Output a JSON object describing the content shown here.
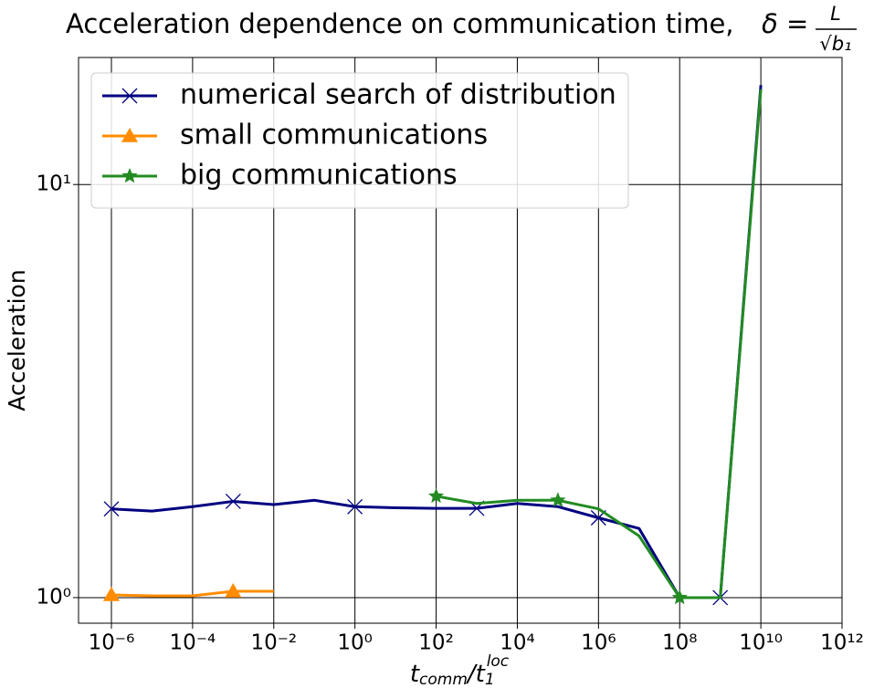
{
  "chart_data": {
    "type": "line",
    "title": "Acceleration dependence on communication time,",
    "title_math": {
      "lhs": "δ =",
      "numerator": "L",
      "denominator": "√b₁"
    },
    "xlabel": [
      "t",
      "comm",
      "/t",
      "1",
      "loc"
    ],
    "ylabel": "Acceleration",
    "xscale": "log",
    "yscale": "log",
    "grid": true,
    "legend": "upper left",
    "xlim": [
      1.55e-07,
      1000000000000.0
    ],
    "ylim": [
      0.867,
      20.3
    ],
    "xticks": [
      {
        "value": 1e-06,
        "label": "10⁻⁶"
      },
      {
        "value": 0.0001,
        "label": "10⁻⁴"
      },
      {
        "value": 0.01,
        "label": "10⁻²"
      },
      {
        "value": 1,
        "label": "10⁰"
      },
      {
        "value": 100,
        "label": "10²"
      },
      {
        "value": 10000,
        "label": "10⁴"
      },
      {
        "value": 1000000,
        "label": "10⁶"
      },
      {
        "value": 100000000,
        "label": "10⁸"
      },
      {
        "value": 10000000000,
        "label": "10¹⁰"
      },
      {
        "value": 1000000000000,
        "label": "10¹²"
      }
    ],
    "yticks": [
      {
        "value": 1,
        "label": "10⁰"
      },
      {
        "value": 10,
        "label": "10¹"
      }
    ],
    "series": [
      {
        "name": "numerical search of distribution",
        "color": "#000080",
        "marker": "x",
        "markevery": 3,
        "x": [
          1e-06,
          1e-05,
          0.0001,
          0.001,
          0.01,
          0.1,
          1,
          10,
          100,
          1000,
          10000,
          100000,
          1000000,
          10000000,
          100000000,
          1000000000,
          10000000000
        ],
        "values": [
          1.64,
          1.62,
          1.66,
          1.71,
          1.68,
          1.72,
          1.66,
          1.65,
          1.645,
          1.645,
          1.69,
          1.66,
          1.56,
          1.47,
          1.0,
          1.0,
          17.4
        ]
      },
      {
        "name": "small communications",
        "color": "#ff8c00",
        "marker": "triangle",
        "markevery": 3,
        "x": [
          1e-06,
          1e-05,
          0.0001,
          0.001,
          0.01
        ],
        "values": [
          1.015,
          1.01,
          1.01,
          1.036,
          1.036
        ]
      },
      {
        "name": "big communications",
        "color": "#228b22",
        "marker": "star",
        "markevery": 3,
        "x": [
          100,
          1000,
          10000,
          100000,
          1000000,
          10000000,
          100000000,
          1000000000,
          10000000000
        ],
        "values": [
          1.76,
          1.69,
          1.72,
          1.72,
          1.64,
          1.41,
          1.0,
          1.0,
          17.0
        ]
      }
    ]
  }
}
